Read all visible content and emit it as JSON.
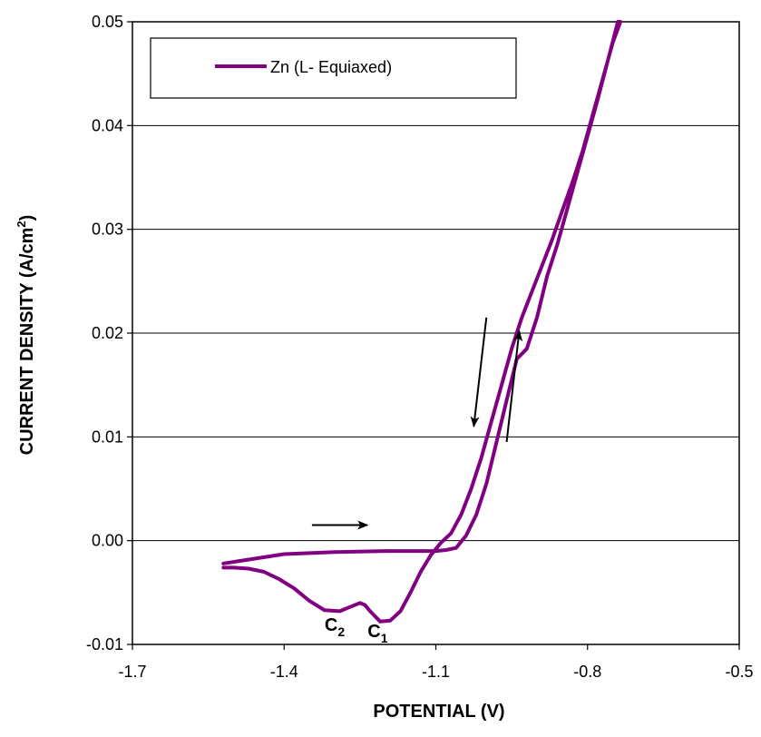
{
  "chart_data": {
    "type": "line",
    "title": "",
    "xlabel": "POTENTIAL (V)",
    "ylabel": "CURRENT DENSITY (A/cm²)",
    "ylabel_main": "CURRENT DENSITY (A/cm",
    "ylabel_sup": "2",
    "ylabel_end": ")",
    "xlim": [
      -1.7,
      -0.5
    ],
    "ylim": [
      -0.01,
      0.05
    ],
    "x_ticks": [
      -1.7,
      -1.4,
      -1.1,
      -0.8,
      -0.5
    ],
    "x_tick_labels": [
      "-1.7",
      "-1.4",
      "-1.1",
      "-0.8",
      "-0.5"
    ],
    "y_ticks": [
      -0.01,
      0.0,
      0.01,
      0.02,
      0.03,
      0.04,
      0.05
    ],
    "y_tick_labels": [
      "-0.01",
      "0.00",
      "0.01",
      "0.02",
      "0.03",
      "0.04",
      "0.05"
    ],
    "grid": "horizontal",
    "legend_position": "top-left",
    "series": [
      {
        "name": "Zn (L- Equiaxed)",
        "color": "#800080",
        "x": [
          -1.52,
          -1.5,
          -1.47,
          -1.44,
          -1.41,
          -1.38,
          -1.35,
          -1.32,
          -1.29,
          -1.27,
          -1.25,
          -1.24,
          -1.23,
          -1.21,
          -1.19,
          -1.17,
          -1.15,
          -1.13,
          -1.11,
          -1.09,
          -1.07,
          -1.05,
          -1.03,
          -1.01,
          -0.99,
          -0.97,
          -0.95,
          -0.93,
          -0.91,
          -0.89,
          -0.87,
          -0.85,
          -0.83,
          -0.81,
          -0.79,
          -0.77,
          -0.75,
          -0.735,
          -0.74,
          -0.76,
          -0.78,
          -0.8,
          -0.82,
          -0.84,
          -0.86,
          -0.88,
          -0.9,
          -0.92,
          -0.94,
          -0.96,
          -0.98,
          -1.0,
          -1.02,
          -1.04,
          -1.06,
          -1.08,
          -1.1,
          -1.15,
          -1.2,
          -1.3,
          -1.4,
          -1.48,
          -1.52
        ],
        "y": [
          -0.0026,
          -0.0026,
          -0.0027,
          -0.003,
          -0.0037,
          -0.0046,
          -0.0058,
          -0.0067,
          -0.0068,
          -0.0064,
          -0.006,
          -0.0062,
          -0.0068,
          -0.0078,
          -0.0077,
          -0.0068,
          -0.005,
          -0.003,
          -0.0014,
          -0.0002,
          0.0007,
          0.0025,
          0.005,
          0.008,
          0.0115,
          0.015,
          0.0185,
          0.0215,
          0.024,
          0.0265,
          0.029,
          0.0318,
          0.0345,
          0.0375,
          0.041,
          0.0445,
          0.048,
          0.05,
          0.05,
          0.0462,
          0.0425,
          0.039,
          0.0355,
          0.032,
          0.0285,
          0.0255,
          0.0215,
          0.0185,
          0.0175,
          0.0135,
          0.0095,
          0.0055,
          0.0025,
          0.0005,
          -0.0007,
          -0.0009,
          -0.001,
          -0.001,
          -0.001,
          -0.0011,
          -0.0013,
          -0.0019,
          -0.0022
        ]
      }
    ],
    "annotations": [
      {
        "main": "C",
        "sub": "2",
        "x": -1.3,
        "y": -0.0087
      },
      {
        "main": "C",
        "sub": "1",
        "x": -1.215,
        "y": -0.0093
      }
    ],
    "arrows": [
      {
        "from": [
          -1.345,
          0.0015
        ],
        "to": [
          -1.235,
          0.0015
        ]
      },
      {
        "from": [
          -1.0,
          0.0215
        ],
        "to": [
          -1.025,
          0.011
        ]
      },
      {
        "from": [
          -0.96,
          0.0095
        ],
        "to": [
          -0.935,
          0.0202
        ]
      }
    ]
  }
}
